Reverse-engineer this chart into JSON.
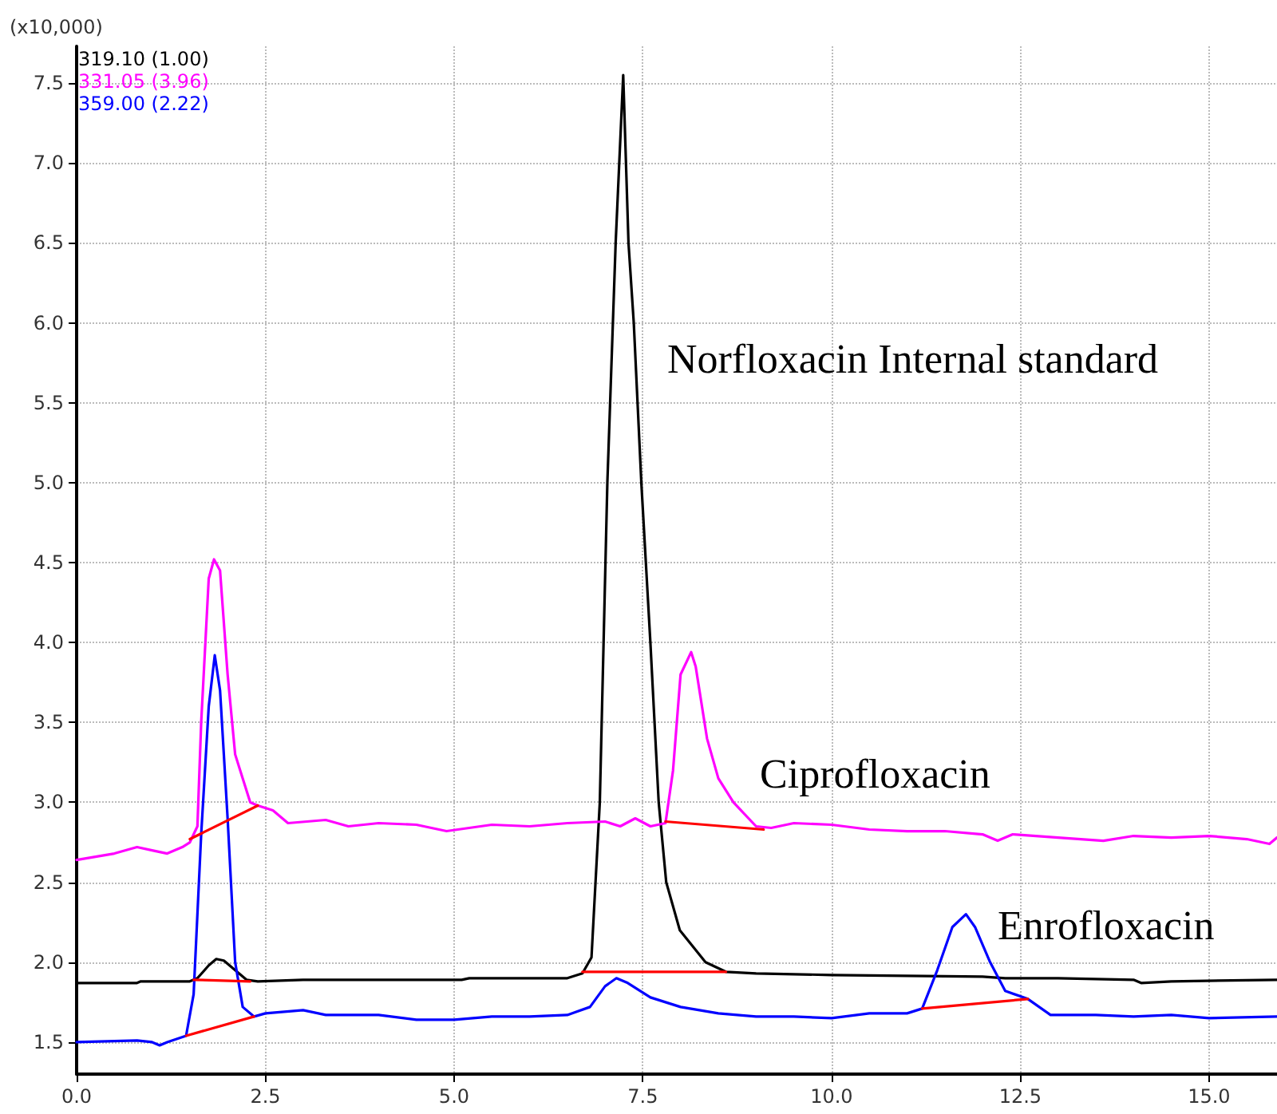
{
  "chart_data": {
    "type": "line",
    "ylabel": "(x10,000)",
    "xlim": [
      0,
      15.9
    ],
    "xticks": [
      {
        "value": 0,
        "label": "0.0"
      },
      2.5,
      {
        "value": 5,
        "label": "5.0"
      },
      7.5,
      {
        "value": 10,
        "label": "10.0"
      },
      12.5,
      {
        "value": 15,
        "label": "15.0"
      }
    ],
    "ylim": [
      1.3,
      7.73
    ],
    "yticks": [
      1.5,
      {
        "value": 2,
        "label": "2.0"
      },
      2.5,
      {
        "value": 3,
        "label": "3.0"
      },
      3.5,
      {
        "value": 4,
        "label": "4.0"
      },
      4.5,
      {
        "value": 5,
        "label": "5.0"
      },
      5.5,
      {
        "value": 6,
        "label": "6.0"
      },
      6.5,
      {
        "value": 7,
        "label": "7.0"
      },
      7.5
    ],
    "grid": true,
    "legend": "top left",
    "marker": "none",
    "line_style": "solid",
    "annotations": [
      "Norfloxacin Internal standard",
      "Ciprofloxacin",
      "Enrofloxacin"
    ],
    "series": [
      {
        "name": "319.10 (1.00)",
        "color": "#000000",
        "x": [
          0,
          0.8,
          0.85,
          1.5,
          1.6,
          1.75,
          1.85,
          1.95,
          2.1,
          2.25,
          2.4,
          3,
          5.1,
          5.2,
          6.5,
          6.7,
          6.82,
          6.93,
          7.03,
          7.14,
          7.24,
          7.31,
          7.38,
          7.48,
          7.6,
          7.71,
          7.81,
          7.99,
          8.33,
          8.6,
          9,
          10,
          12,
          12.3,
          13,
          14,
          14.1,
          14.5,
          15.9
        ],
        "values": [
          1.87,
          1.87,
          1.88,
          1.88,
          1.9,
          1.98,
          2.02,
          2.01,
          1.95,
          1.89,
          1.88,
          1.89,
          1.89,
          1.9,
          1.9,
          1.93,
          2.03,
          3.0,
          5.0,
          6.5,
          7.55,
          6.5,
          6.0,
          5.0,
          4.0,
          3.0,
          2.5,
          2.2,
          2.0,
          1.94,
          1.93,
          1.92,
          1.91,
          1.9,
          1.9,
          1.89,
          1.87,
          1.88,
          1.89
        ]
      },
      {
        "name": "331.05 (3.96)",
        "color": "#ff00ff",
        "x": [
          0,
          0.5,
          0.8,
          1.0,
          1.2,
          1.4,
          1.5,
          1.6,
          1.65,
          1.75,
          1.82,
          1.9,
          2.0,
          2.1,
          2.2,
          2.3,
          2.4,
          2.6,
          2.8,
          3.3,
          3.6,
          4,
          4.5,
          4.9,
          5.2,
          5.5,
          6.0,
          6.5,
          7.0,
          7.2,
          7.4,
          7.6,
          7.8,
          7.9,
          8.0,
          8.14,
          8.2,
          8.35,
          8.5,
          8.7,
          9.0,
          9.2,
          9.5,
          10,
          10.5,
          11,
          11.5,
          12.0,
          12.2,
          12.4,
          13,
          13.6,
          14,
          14.5,
          15,
          15.5,
          15.8,
          15.9
        ],
        "values": [
          2.64,
          2.68,
          2.72,
          2.7,
          2.68,
          2.72,
          2.75,
          2.85,
          3.5,
          4.4,
          4.52,
          4.45,
          3.8,
          3.3,
          3.15,
          3.0,
          2.98,
          2.95,
          2.87,
          2.89,
          2.85,
          2.87,
          2.86,
          2.82,
          2.84,
          2.86,
          2.85,
          2.87,
          2.88,
          2.85,
          2.9,
          2.85,
          2.87,
          3.2,
          3.8,
          3.94,
          3.85,
          3.4,
          3.15,
          3.0,
          2.85,
          2.84,
          2.87,
          2.86,
          2.83,
          2.82,
          2.82,
          2.8,
          2.76,
          2.8,
          2.78,
          2.76,
          2.79,
          2.78,
          2.79,
          2.77,
          2.74,
          2.78
        ]
      },
      {
        "name": "359.00 (2.22)",
        "color": "#0000ff",
        "x": [
          0,
          0.8,
          1.0,
          1.1,
          1.2,
          1.45,
          1.55,
          1.65,
          1.75,
          1.83,
          1.9,
          2.0,
          2.1,
          2.2,
          2.35,
          2.5,
          3.0,
          3.3,
          4,
          4.5,
          5.0,
          5.5,
          6.0,
          6.5,
          6.8,
          7.0,
          7.15,
          7.3,
          7.6,
          8.0,
          8.5,
          9,
          9.5,
          10,
          10.5,
          11.0,
          11.2,
          11.4,
          11.6,
          11.78,
          11.9,
          12.1,
          12.3,
          12.6,
          12.9,
          13.5,
          14,
          14.5,
          15,
          15.9
        ],
        "values": [
          1.5,
          1.51,
          1.5,
          1.48,
          1.5,
          1.54,
          1.8,
          2.8,
          3.6,
          3.92,
          3.7,
          2.9,
          2.0,
          1.72,
          1.66,
          1.68,
          1.7,
          1.67,
          1.67,
          1.64,
          1.64,
          1.66,
          1.66,
          1.67,
          1.72,
          1.85,
          1.9,
          1.87,
          1.78,
          1.72,
          1.68,
          1.66,
          1.66,
          1.65,
          1.68,
          1.68,
          1.71,
          1.95,
          2.22,
          2.3,
          2.22,
          2.0,
          1.82,
          1.77,
          1.67,
          1.67,
          1.66,
          1.67,
          1.65,
          1.66
        ]
      },
      {
        "color": "#ff0000",
        "x": [
          1.5,
          2.4
        ],
        "values": [
          2.77,
          2.98
        ]
      },
      {
        "color": "#ff0000",
        "x": [
          1.55,
          2.3
        ],
        "values": [
          1.89,
          1.88
        ]
      },
      {
        "color": "#ff0000",
        "x": [
          1.45,
          2.35
        ],
        "values": [
          1.54,
          1.66
        ]
      },
      {
        "color": "#ff0000",
        "x": [
          6.7,
          8.6
        ],
        "values": [
          1.94,
          1.94
        ]
      },
      {
        "color": "#ff0000",
        "x": [
          7.8,
          9.1
        ],
        "values": [
          2.88,
          2.83
        ]
      },
      {
        "color": "#ff0000",
        "x": [
          11.2,
          12.6
        ],
        "values": [
          1.71,
          1.77
        ]
      }
    ]
  }
}
